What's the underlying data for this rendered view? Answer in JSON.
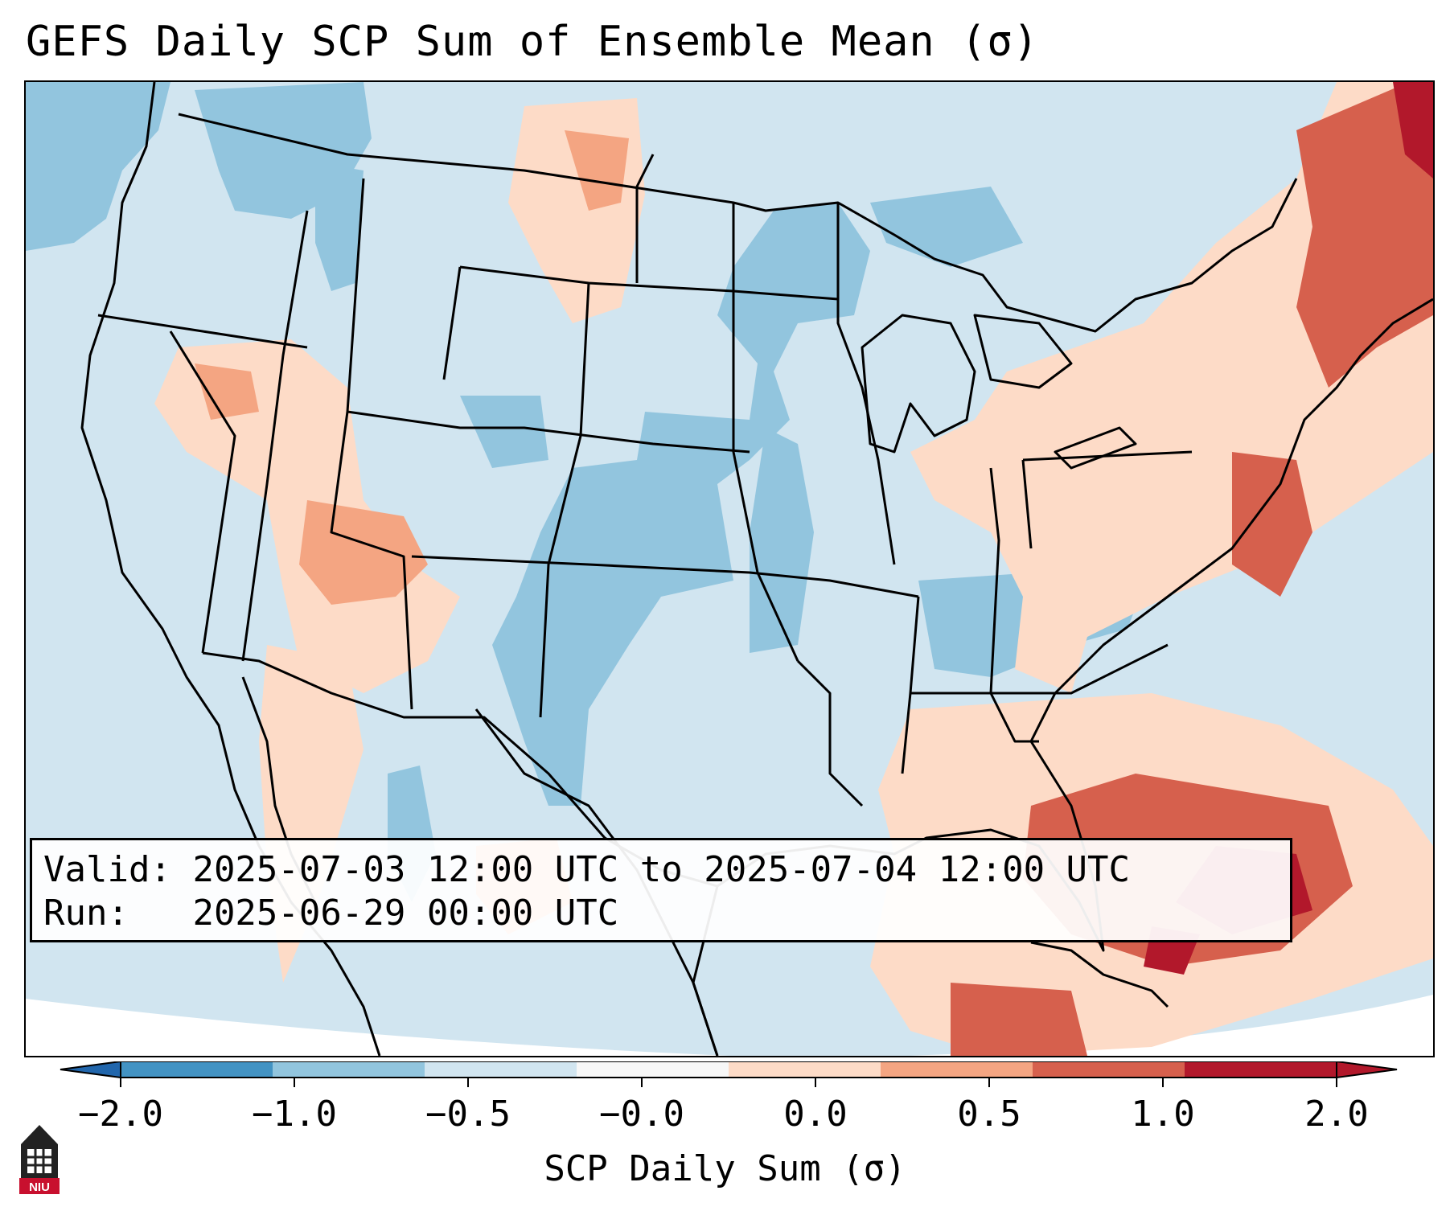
{
  "title": "GEFS Daily SCP Sum of Ensemble Mean (σ)",
  "info": {
    "valid_label": "Valid:",
    "valid_value": "2025-07-03 12:00 UTC to 2025-07-04 12:00 UTC",
    "run_label": "Run:",
    "run_value": "2025-06-29 00:00 UTC"
  },
  "colorbar": {
    "label": "SCP Daily Sum (σ)",
    "ticks": [
      "−2.0",
      "−1.0",
      "−0.5",
      "−0.0",
      "0.0",
      "0.5",
      "1.0",
      "2.0"
    ],
    "colors": [
      "#4393c3",
      "#92c5de",
      "#d1e5f0",
      "#f7f7f7",
      "#fddbc7",
      "#f4a582",
      "#d6604d",
      "#b2182b"
    ],
    "extend_low_color": "#2166ac",
    "extend_high_color": "#b2182b"
  },
  "logo": {
    "text": "NIU",
    "icon": "university-tower-icon"
  },
  "map": {
    "projection": "Lambert conformal (CONUS)",
    "field_colors": {
      "neutral_low": "#d1e5f0",
      "low": "#92c5de",
      "neutral_high": "#fddbc7",
      "high": "#f4a582",
      "higher": "#d6604d",
      "highest": "#b2182b"
    }
  }
}
